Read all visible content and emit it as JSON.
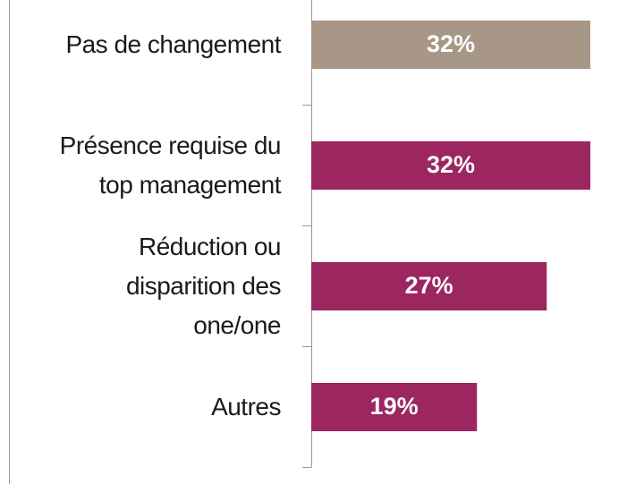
{
  "chart_data": {
    "type": "barh",
    "categories": [
      "Pas de changement",
      "Présence requise du\ntop management",
      "Réduction ou\ndisparition des\none/one",
      "Autres"
    ],
    "values": [
      32,
      32,
      27,
      19
    ],
    "value_labels": [
      "32%",
      "32%",
      "27%",
      "19%"
    ],
    "colors": [
      "#a89686",
      "#9b2660",
      "#9b2660",
      "#9b2660"
    ]
  }
}
